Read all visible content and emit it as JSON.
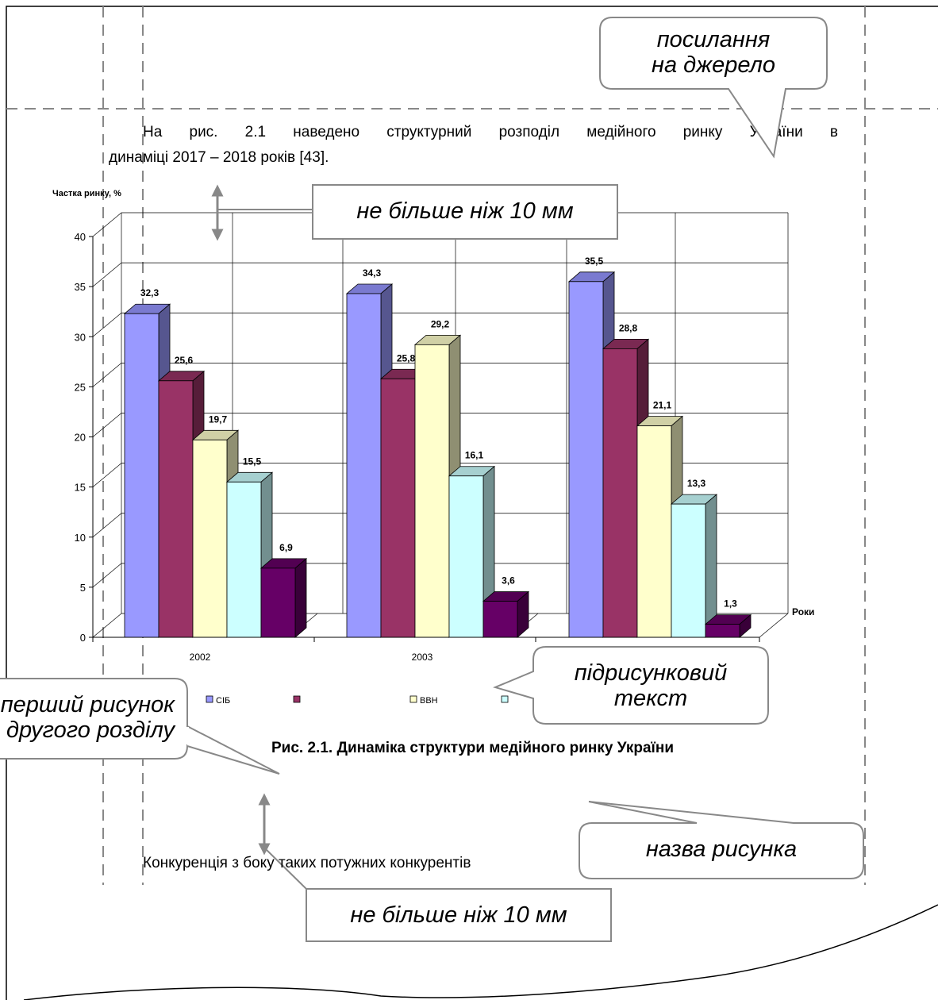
{
  "paragraph_1": {
    "line_1": "На рис. 2.1 наведено структурний розподіл медійного ринку України в",
    "line_2": "динаміці 2017 – 2018 років [43]."
  },
  "paragraph_2": "Конкуренція з боку таких потужних конкурентів",
  "figure_caption": "Рис. 2.1. Динаміка структури медійного ринку України",
  "callouts": {
    "source_reference": [
      "посилання",
      "на джерело"
    ],
    "spacing_top": "не більше ніж 10 мм",
    "spacing_bottom": "не більше ніж 10 мм",
    "under_figure_text": [
      "підрисунковий",
      "текст"
    ],
    "first_figure": [
      "перший рисунок",
      "другого розділу"
    ],
    "figure_name": "назва рисунка"
  },
  "chart_data": {
    "type": "bar",
    "style": "3d-clustered-column",
    "ylabel": "Частка ринку, %",
    "xlabel": "Роки",
    "ylim": [
      0,
      40
    ],
    "yticks": [
      0,
      5,
      10,
      15,
      20,
      25,
      30,
      35,
      40
    ],
    "categories": [
      "2002",
      "2003",
      ""
    ],
    "series": [
      {
        "name": "СІБ",
        "values": [
          32.3,
          34.3,
          35.5
        ],
        "labels": [
          "32,3",
          "34,3",
          "35,5"
        ],
        "color": "#9999ff",
        "side": "#56568f",
        "top": "#7a7ad0"
      },
      {
        "name": "",
        "values": [
          25.6,
          25.8,
          28.8
        ],
        "labels": [
          "25,6",
          "25,8",
          "28,8"
        ],
        "color": "#993366",
        "side": "#561d39",
        "top": "#7a2952"
      },
      {
        "name": "ВВН",
        "values": [
          19.7,
          29.2,
          21.1
        ],
        "labels": [
          "19,7",
          "29,2",
          "21,1"
        ],
        "color": "#ffffcc",
        "side": "#8f8f72",
        "top": "#d0d0a6"
      },
      {
        "name": "",
        "values": [
          15.5,
          16.1,
          13.3
        ],
        "labels": [
          "15,5",
          "16,1",
          "13,3"
        ],
        "color": "#ccffff",
        "side": "#728f8f",
        "top": "#a6d0d0"
      },
      {
        "name": "",
        "values": [
          6.9,
          3.6,
          1.3
        ],
        "labels": [
          "6,9",
          "3,6",
          "1,3"
        ],
        "color": "#660066",
        "side": "#390039",
        "top": "#520052"
      }
    ],
    "legend_position": "bottom",
    "grid": true
  }
}
